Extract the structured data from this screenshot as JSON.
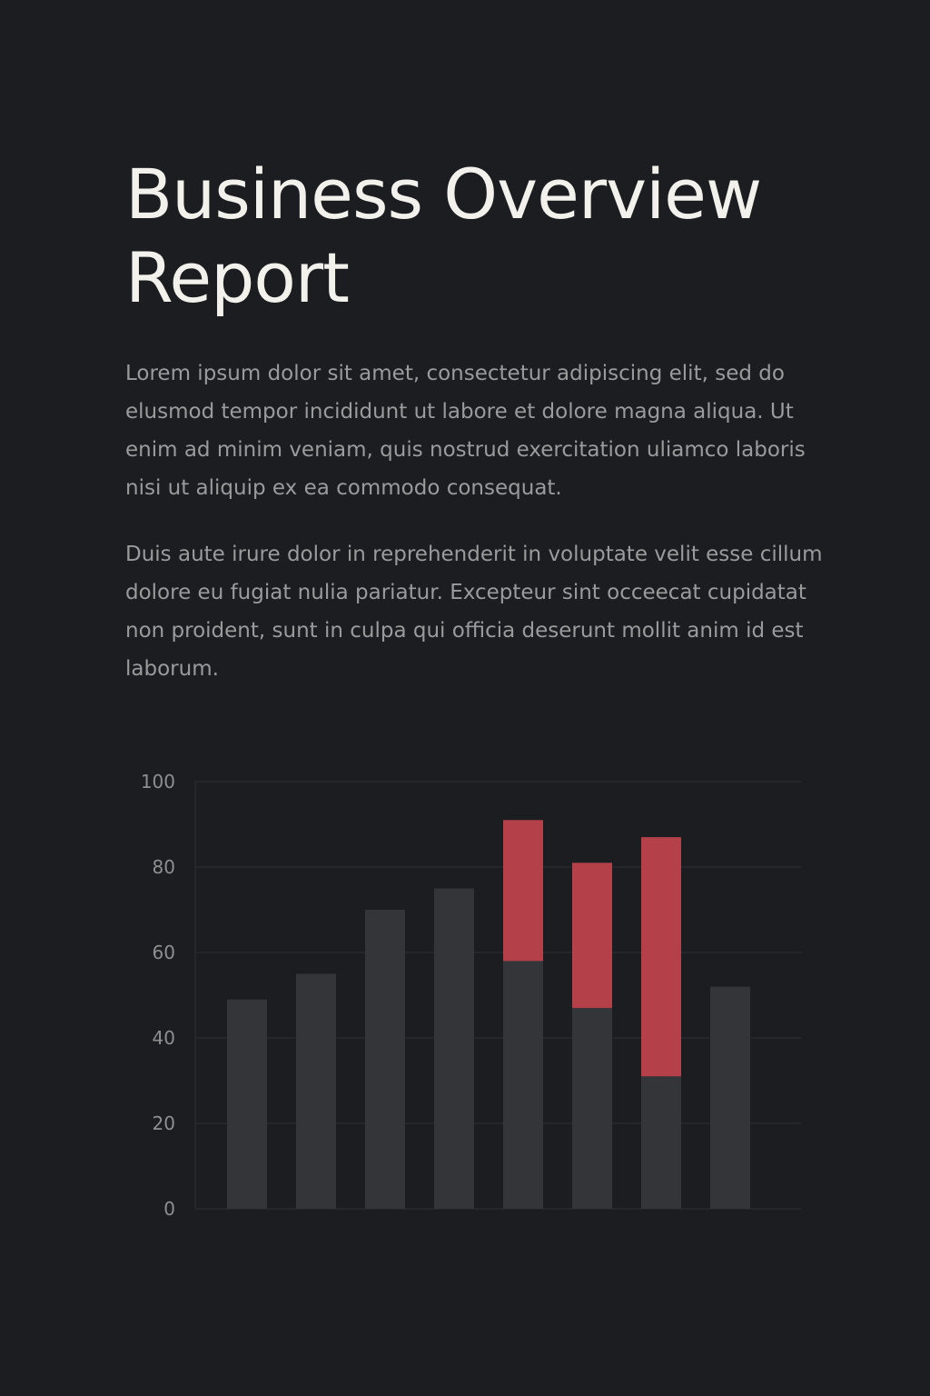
{
  "report": {
    "title": "Business Overview Report",
    "paragraphs": [
      "Lorem ipsum dolor sit amet, consectetur adipiscing elit, sed do elusmod tempor incididunt ut labore et dolore magna aliqua. Ut enim ad minim veniam, quis nostrud exercitation uliamco laboris nisi ut aliquip ex ea commodo consequat.",
      "Duis aute irure dolor in reprehenderit in voluptate velit esse cillum dolore eu fugiat nulia pariatur. Excepteur sint occeecat cupidatat non proident, sunt in culpa qui officia deserunt mollit anim id est laborum."
    ]
  },
  "colors": {
    "background": "#1b1d20",
    "base_bar": "#333538",
    "highlight_bar": "#b4414a",
    "grid": "#2d2f32",
    "tick_text": "#8e8f91"
  },
  "chart_data": {
    "type": "bar",
    "stacked": true,
    "categories": [
      "",
      "",
      "",
      "",
      "",
      "",
      "",
      ""
    ],
    "series": [
      {
        "values": [
          49,
          55,
          70,
          75,
          58,
          47,
          31,
          52
        ]
      },
      {
        "values": [
          0,
          0,
          0,
          0,
          33,
          34,
          56,
          0
        ]
      }
    ],
    "ylim": [
      0,
      100
    ],
    "yticks": [
      0,
      20,
      40,
      60,
      80,
      100
    ],
    "grid": true,
    "legend": "none"
  }
}
